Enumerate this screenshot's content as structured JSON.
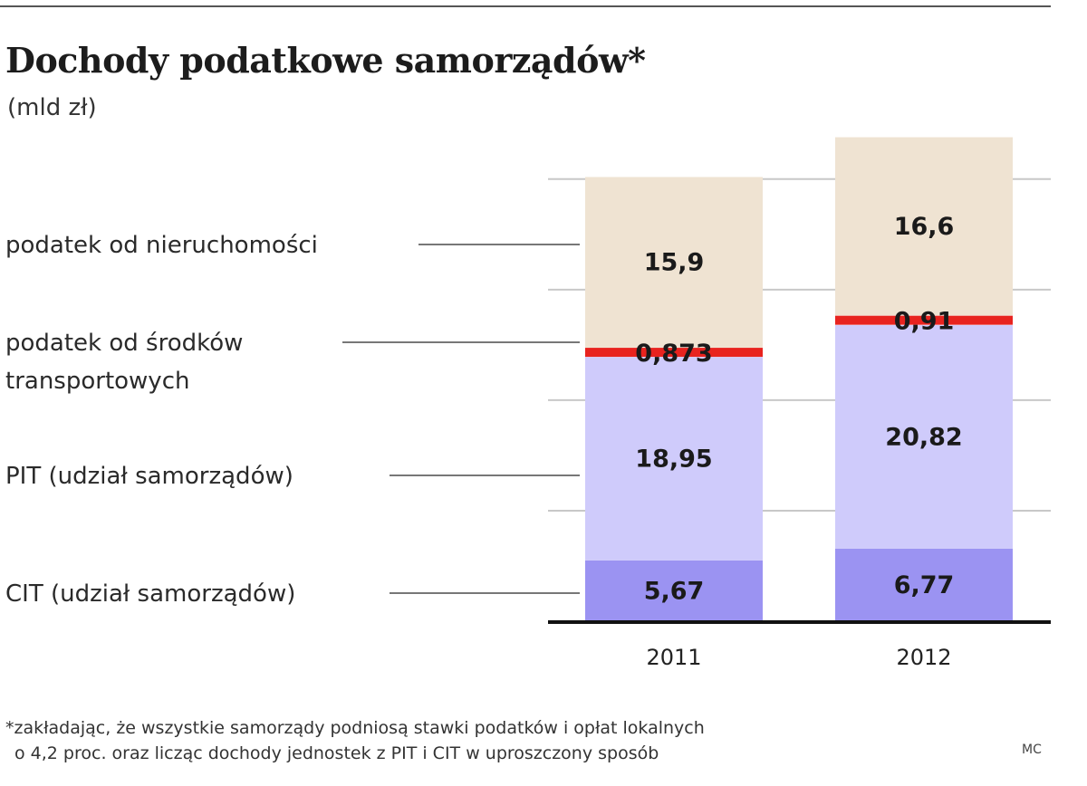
{
  "chart_data": {
    "type": "bar",
    "stacked": true,
    "title": "Dochody podatkowe samorządów*",
    "subtitle": "(mld zł)",
    "categories": [
      "2011",
      "2012"
    ],
    "series": [
      {
        "name": "CIT (udział samorządów)",
        "values": [
          5.67,
          6.77
        ],
        "labels": [
          "5,67",
          "6,77"
        ],
        "color": "#9b93f2"
      },
      {
        "name": "PIT (udział samorządów)",
        "values": [
          18.95,
          20.82
        ],
        "labels": [
          "18,95",
          "20,82"
        ],
        "color": "#cfcbfb"
      },
      {
        "name": "podatek od środków transportowych",
        "name_lines": [
          "podatek od środków",
          "transportowych"
        ],
        "values": [
          0.873,
          0.91
        ],
        "labels": [
          "0,873",
          "0,91"
        ],
        "color": "#e8231f"
      },
      {
        "name": "podatek od nieruchomości",
        "values": [
          15.9,
          16.6
        ],
        "labels": [
          "15,9",
          "16,6"
        ],
        "color": "#efe3d2"
      }
    ],
    "ylim": [
      0,
      46
    ],
    "grid": true,
    "legend": "left, with leader lines"
  },
  "footnote": {
    "lines": [
      "*zakładając, że wszystkie samorządy podniosą stawki podatków i opłat lokalnych",
      "o 4,2 proc. oraz licząc dochody jednostek z PIT i CIT w uproszczony sposób"
    ]
  },
  "credit": "MC"
}
